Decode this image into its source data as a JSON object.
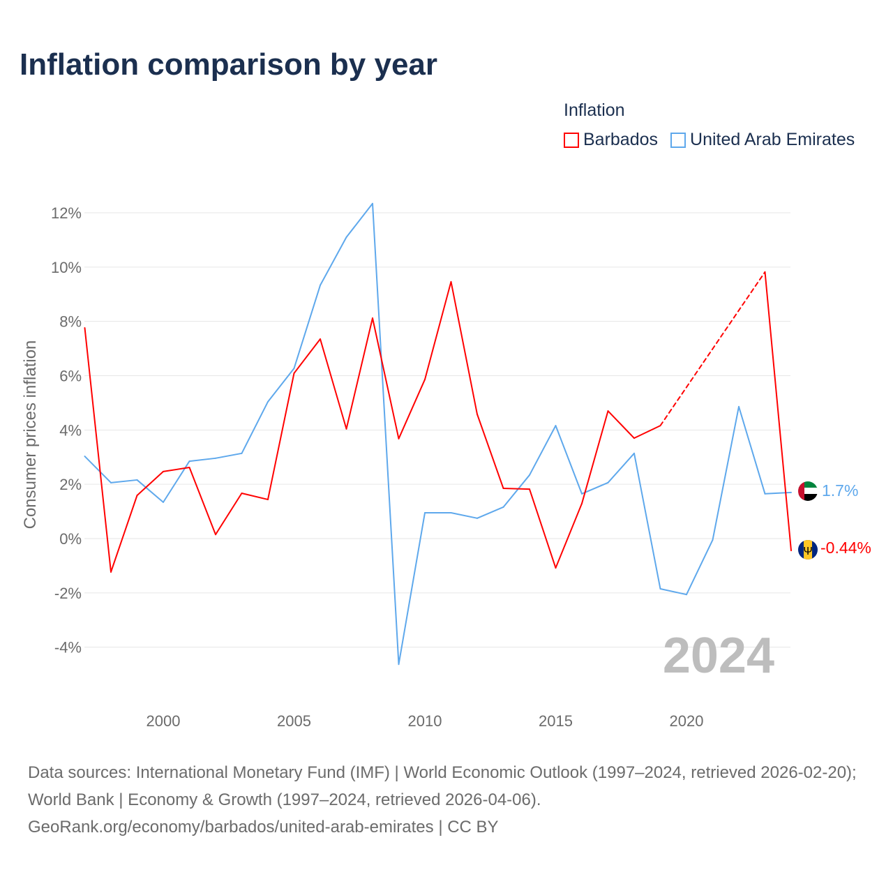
{
  "title": "Inflation comparison by year",
  "legend": {
    "title": "Inflation",
    "items": [
      "Barbados",
      "United Arab Emirates"
    ]
  },
  "sources": {
    "line1": "Data sources: International Monetary Fund (IMF) | World Economic Outlook (1997–2024, retrieved 2026-02-20); World Bank | Economy & Growth (1997–2024, retrieved 2026-04-06).",
    "line2": "GeoRank.org/economy/barbados/united-arab-emirates | CC BY"
  },
  "chart_data": {
    "type": "line",
    "title": "Inflation comparison by year",
    "ylabel": "Consumer prices inflation",
    "xlabel": "",
    "year_watermark": "2024",
    "x": [
      1997,
      1998,
      1999,
      2000,
      2001,
      2002,
      2003,
      2004,
      2005,
      2006,
      2007,
      2008,
      2009,
      2010,
      2011,
      2012,
      2013,
      2014,
      2015,
      2016,
      2017,
      2018,
      2019,
      2020,
      2021,
      2022,
      2023,
      2024
    ],
    "xlim": [
      1997,
      2024
    ],
    "ylim": [
      -4.8,
      12.5
    ],
    "xticks": [
      2000,
      2005,
      2010,
      2015,
      2020
    ],
    "yticks": [
      -4,
      -2,
      0,
      2,
      4,
      6,
      8,
      10,
      12
    ],
    "ytick_labels": [
      "-4%",
      "-2%",
      "0%",
      "2%",
      "4%",
      "6%",
      "8%",
      "10%",
      "12%"
    ],
    "grid": true,
    "legend_position": "top-right",
    "series": [
      {
        "name": "Barbados",
        "color": "#ff0000",
        "end_label": "-0.44%",
        "values": [
          7.76,
          -1.23,
          1.59,
          2.47,
          2.62,
          0.15,
          1.67,
          1.44,
          6.09,
          7.35,
          4.04,
          8.12,
          3.68,
          5.86,
          9.46,
          4.58,
          1.85,
          1.82,
          -1.08,
          1.29,
          4.7,
          3.7,
          4.16,
          null,
          null,
          null,
          9.82,
          -0.44
        ]
      },
      {
        "name": "United Arab Emirates",
        "color": "#5ea8ec",
        "end_label": "1.7%",
        "values": [
          3.03,
          2.06,
          2.16,
          1.34,
          2.85,
          2.96,
          3.14,
          5.04,
          6.27,
          9.33,
          11.1,
          12.34,
          -4.63,
          0.95,
          0.95,
          0.75,
          1.16,
          2.34,
          4.16,
          1.65,
          2.06,
          3.14,
          -1.85,
          -2.06,
          -0.05,
          4.86,
          1.65,
          1.7
        ]
      }
    ]
  }
}
